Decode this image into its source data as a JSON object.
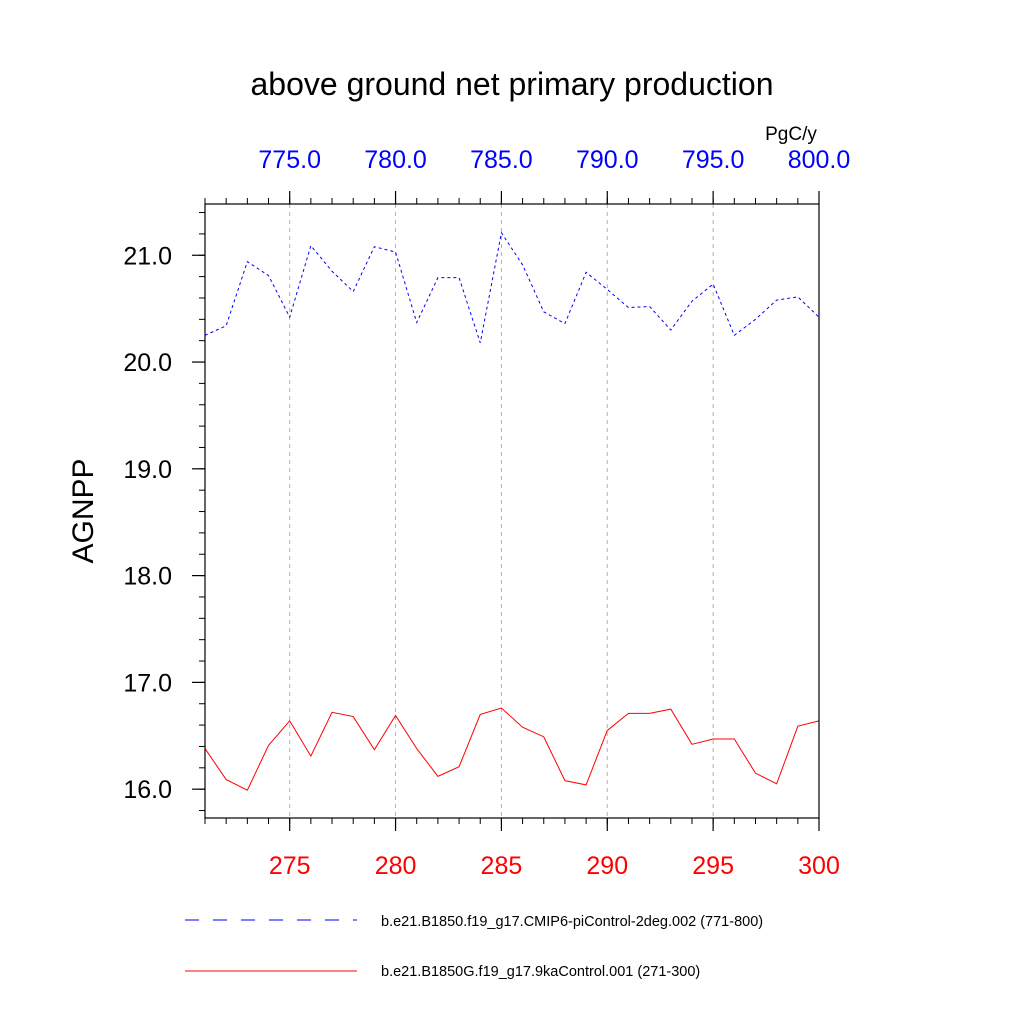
{
  "chart_data": {
    "type": "line",
    "title": "above ground net primary production",
    "ylabel": "AGNPP",
    "units": "PgC/y",
    "ylim": [
      15.73,
      21.48
    ],
    "y_ticks": [
      "16.0",
      "17.0",
      "18.0",
      "19.0",
      "20.0",
      "21.0"
    ],
    "y_tick_values": [
      16,
      17,
      18,
      19,
      20,
      21
    ],
    "grid": "vertical-dashed",
    "legend_position": "bottom",
    "x_bottom": {
      "range": [
        271,
        300
      ],
      "ticks": [
        "275",
        "280",
        "285",
        "290",
        "295",
        "300"
      ],
      "tick_values": [
        275,
        280,
        285,
        290,
        295,
        300
      ],
      "color": "#ff0000"
    },
    "x_top": {
      "range": [
        771,
        800
      ],
      "ticks": [
        "775.0",
        "780.0",
        "785.0",
        "790.0",
        "795.0",
        "800.0"
      ],
      "tick_values": [
        775,
        780,
        785,
        790,
        795,
        800
      ],
      "color": "#0000ff"
    },
    "series": [
      {
        "name": "b.e21.B1850.f19_g17.CMIP6-piControl-2deg.002 (771-800)",
        "axis": "top",
        "color": "#0000ff",
        "dash": "dashed",
        "x": [
          771,
          772,
          773,
          774,
          775,
          776,
          777,
          778,
          779,
          780,
          781,
          782,
          783,
          784,
          785,
          786,
          787,
          788,
          789,
          790,
          791,
          792,
          793,
          794,
          795,
          796,
          797,
          798,
          799,
          800
        ],
        "values": [
          20.25,
          20.34,
          20.94,
          20.81,
          20.42,
          21.09,
          20.85,
          20.66,
          21.08,
          21.03,
          20.37,
          20.79,
          20.79,
          20.18,
          21.21,
          20.91,
          20.47,
          20.36,
          20.84,
          20.68,
          20.51,
          20.52,
          20.3,
          20.57,
          20.73,
          20.25,
          20.4,
          20.58,
          20.61,
          20.42
        ]
      },
      {
        "name": "b.e21.B1850G.f19_g17.9kaControl.001 (271-300)",
        "axis": "bottom",
        "color": "#ff0000",
        "dash": "solid",
        "x": [
          271,
          272,
          273,
          274,
          275,
          276,
          277,
          278,
          279,
          280,
          281,
          282,
          283,
          284,
          285,
          286,
          287,
          288,
          289,
          290,
          291,
          292,
          293,
          294,
          295,
          296,
          297,
          298,
          299,
          300
        ],
        "values": [
          16.38,
          16.09,
          15.99,
          16.41,
          16.64,
          16.31,
          16.72,
          16.68,
          16.37,
          16.69,
          16.38,
          16.12,
          16.21,
          16.7,
          16.76,
          16.58,
          16.49,
          16.08,
          16.04,
          16.55,
          16.71,
          16.71,
          16.75,
          16.42,
          16.47,
          16.47,
          16.15,
          16.05,
          16.59,
          16.64
        ]
      }
    ]
  }
}
